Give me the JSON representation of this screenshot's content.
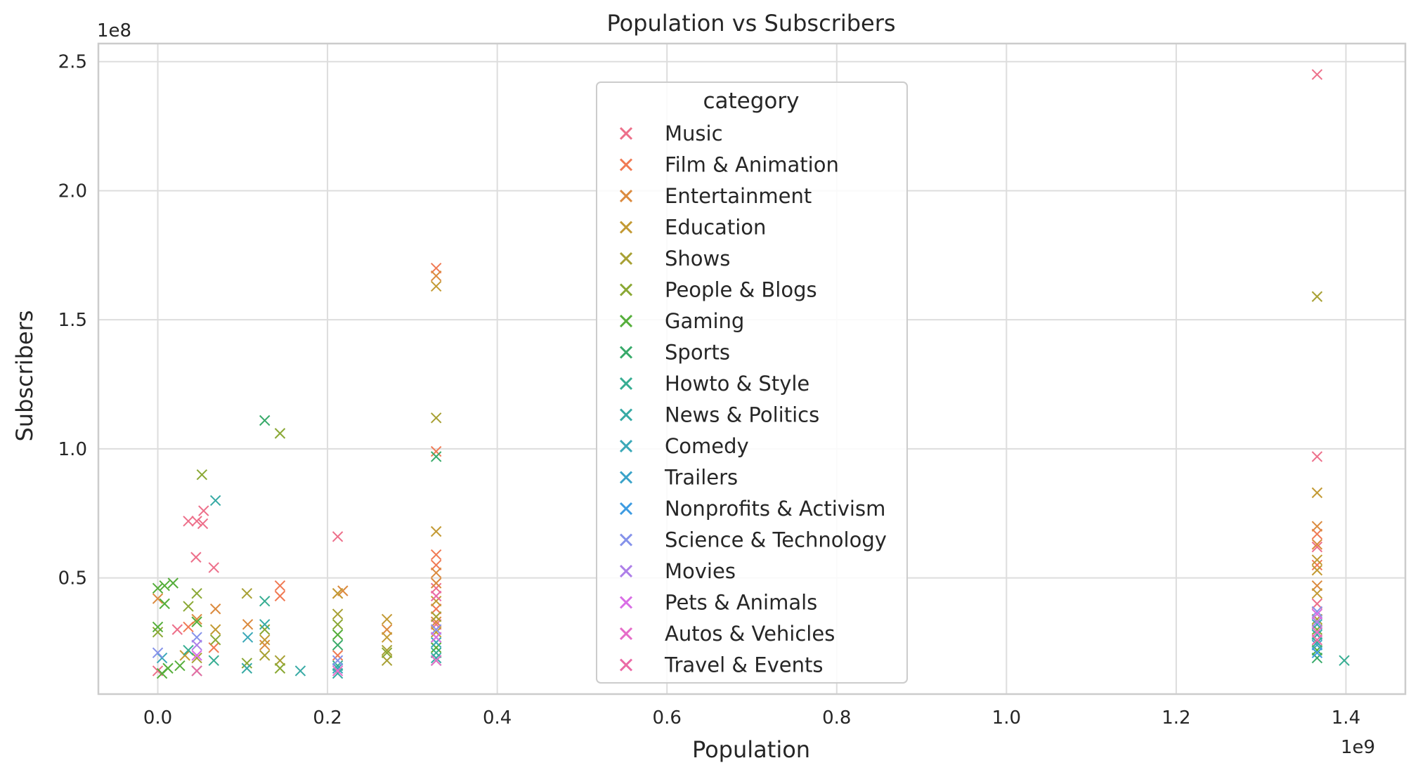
{
  "chart_data": {
    "type": "scatter",
    "title": "Population vs Subscribers",
    "xlabel": "Population",
    "ylabel": "Subscribers",
    "x_offset_label": "1e9",
    "y_offset_label": "1e8",
    "x_scale": 1000000000,
    "y_scale": 100000000,
    "xlim": [
      -70000000,
      1470000000
    ],
    "ylim": [
      5000000,
      257000000
    ],
    "x_ticks": [
      0,
      200000000,
      400000000,
      600000000,
      800000000,
      1000000000,
      1200000000,
      1400000000
    ],
    "x_tick_labels": [
      "0.0",
      "0.2",
      "0.4",
      "0.6",
      "0.8",
      "1.0",
      "1.2",
      "1.4"
    ],
    "y_ticks": [
      50000000,
      100000000,
      150000000,
      200000000,
      250000000
    ],
    "y_tick_labels": [
      "0.5",
      "1.0",
      "1.5",
      "2.0",
      "2.5"
    ],
    "grid": true,
    "marker": "x",
    "legend_title": "category",
    "legend_position": "upper-center",
    "series": [
      {
        "name": "Music",
        "color": "#ed6f8a",
        "points": [
          [
            1366000000,
            245000000
          ],
          [
            1366000000,
            97000000
          ],
          [
            212000000,
            66000000
          ],
          [
            36000000,
            72000000
          ],
          [
            46000000,
            72000000
          ],
          [
            54000000,
            76000000
          ],
          [
            45000000,
            58000000
          ],
          [
            66000000,
            54000000
          ],
          [
            328000000,
            46000000
          ],
          [
            1366000000,
            62000000
          ],
          [
            53000000,
            71000000
          ],
          [
            23000000,
            30000000
          ],
          [
            328000000,
            32000000
          ],
          [
            1366000000,
            40000000
          ],
          [
            0,
            14000000
          ]
        ]
      },
      {
        "name": "Film & Animation",
        "color": "#f07a54",
        "points": [
          [
            328000000,
            170000000
          ],
          [
            328000000,
            99000000
          ],
          [
            144000000,
            47000000
          ],
          [
            144000000,
            43000000
          ],
          [
            328000000,
            59000000
          ],
          [
            328000000,
            55000000
          ],
          [
            1366000000,
            67000000
          ],
          [
            1366000000,
            55000000
          ],
          [
            36000000,
            31000000
          ],
          [
            66000000,
            23000000
          ],
          [
            212000000,
            20000000
          ],
          [
            328000000,
            38000000
          ]
        ]
      },
      {
        "name": "Entertainment",
        "color": "#db8a3e",
        "points": [
          [
            328000000,
            167000000
          ],
          [
            1366000000,
            70000000
          ],
          [
            1366000000,
            63000000
          ],
          [
            328000000,
            52000000
          ],
          [
            328000000,
            48000000
          ],
          [
            0,
            42000000
          ],
          [
            68000000,
            38000000
          ],
          [
            212000000,
            44000000
          ],
          [
            218000000,
            45000000
          ],
          [
            1366000000,
            47000000
          ],
          [
            1366000000,
            36000000
          ],
          [
            106000000,
            32000000
          ],
          [
            46000000,
            34000000
          ],
          [
            328000000,
            33000000
          ],
          [
            126000000,
            24000000
          ],
          [
            270000000,
            30000000
          ]
        ]
      },
      {
        "name": "Education",
        "color": "#c39a34",
        "points": [
          [
            328000000,
            163000000
          ],
          [
            1366000000,
            83000000
          ],
          [
            328000000,
            68000000
          ],
          [
            1366000000,
            57000000
          ],
          [
            1366000000,
            53000000
          ],
          [
            270000000,
            34000000
          ],
          [
            270000000,
            27000000
          ],
          [
            212000000,
            44000000
          ],
          [
            328000000,
            41000000
          ],
          [
            1366000000,
            44000000
          ],
          [
            126000000,
            26000000
          ],
          [
            68000000,
            30000000
          ],
          [
            32000000,
            20000000
          ],
          [
            328000000,
            29000000
          ]
        ]
      },
      {
        "name": "Shows",
        "color": "#a7a033",
        "points": [
          [
            1366000000,
            159000000
          ],
          [
            328000000,
            112000000
          ],
          [
            212000000,
            36000000
          ],
          [
            270000000,
            22000000
          ],
          [
            328000000,
            35000000
          ],
          [
            1366000000,
            34000000
          ],
          [
            105000000,
            44000000
          ],
          [
            126000000,
            20000000
          ],
          [
            144000000,
            18000000
          ],
          [
            46000000,
            19000000
          ],
          [
            270000000,
            18000000
          ]
        ]
      },
      {
        "name": "People & Blogs",
        "color": "#8aa834",
        "points": [
          [
            52000000,
            90000000
          ],
          [
            144000000,
            106000000
          ],
          [
            46000000,
            44000000
          ],
          [
            36000000,
            39000000
          ],
          [
            212000000,
            32000000
          ],
          [
            270000000,
            21000000
          ],
          [
            1366000000,
            30000000
          ],
          [
            328000000,
            27000000
          ],
          [
            126000000,
            30000000
          ],
          [
            68000000,
            26000000
          ],
          [
            0,
            29000000
          ],
          [
            105000000,
            17000000
          ],
          [
            144000000,
            15000000
          ]
        ]
      },
      {
        "name": "Gaming",
        "color": "#55ae3a",
        "points": [
          [
            0,
            46000000
          ],
          [
            8000000,
            47000000
          ],
          [
            18000000,
            48000000
          ],
          [
            0,
            31000000
          ],
          [
            8000000,
            40000000
          ],
          [
            46000000,
            33000000
          ],
          [
            212000000,
            28000000
          ],
          [
            328000000,
            23000000
          ],
          [
            1366000000,
            22000000
          ],
          [
            12000000,
            15000000
          ],
          [
            5000000,
            13000000
          ],
          [
            26000000,
            16000000
          ]
        ]
      },
      {
        "name": "Sports",
        "color": "#38aa6a",
        "points": [
          [
            126000000,
            111000000
          ],
          [
            328000000,
            97000000
          ],
          [
            212000000,
            24000000
          ],
          [
            1366000000,
            19000000
          ],
          [
            328000000,
            18000000
          ],
          [
            46000000,
            14000000
          ]
        ]
      },
      {
        "name": "Howto & Style",
        "color": "#36ad92",
        "points": [
          [
            126000000,
            41000000
          ],
          [
            1398000000,
            18000000
          ],
          [
            1366000000,
            25000000
          ],
          [
            328000000,
            21000000
          ],
          [
            212000000,
            16000000
          ],
          [
            66000000,
            18000000
          ],
          [
            36000000,
            22000000
          ]
        ]
      },
      {
        "name": "News & Politics",
        "color": "#37aaa5",
        "points": [
          [
            68000000,
            80000000
          ],
          [
            168000000,
            14000000
          ],
          [
            1366000000,
            28000000
          ],
          [
            328000000,
            19000000
          ],
          [
            212000000,
            13000000
          ],
          [
            105000000,
            15000000
          ],
          [
            126000000,
            32000000
          ]
        ]
      },
      {
        "name": "Comedy",
        "color": "#3aa8b8",
        "points": [
          [
            1366000000,
            32000000
          ],
          [
            328000000,
            25000000
          ],
          [
            106000000,
            27000000
          ],
          [
            212000000,
            15000000
          ],
          [
            5000000,
            19000000
          ]
        ]
      },
      {
        "name": "Trailers",
        "color": "#3ba3c9",
        "points": [
          [
            1366000000,
            24000000
          ]
        ]
      },
      {
        "name": "Nonprofits & Activism",
        "color": "#3d9be1",
        "points": [
          [
            1366000000,
            21000000
          ]
        ]
      },
      {
        "name": "Science & Technology",
        "color": "#8592ea",
        "points": [
          [
            1366000000,
            37000000
          ],
          [
            328000000,
            30000000
          ],
          [
            46000000,
            27000000
          ],
          [
            0,
            21000000
          ],
          [
            212000000,
            18000000
          ]
        ]
      },
      {
        "name": "Movies",
        "color": "#ad7ee8",
        "points": [
          [
            1366000000,
            33000000
          ],
          [
            46000000,
            24000000
          ]
        ]
      },
      {
        "name": "Pets & Animals",
        "color": "#d96ee6",
        "points": [
          [
            1366000000,
            36000000
          ],
          [
            328000000,
            27000000
          ],
          [
            46000000,
            20000000
          ]
        ]
      },
      {
        "name": "Autos & Vehicles",
        "color": "#e66cc8",
        "points": [
          [
            1366000000,
            29000000
          ],
          [
            328000000,
            18000000
          ],
          [
            212000000,
            14000000
          ]
        ]
      },
      {
        "name": "Travel & Events",
        "color": "#ea6aa6",
        "points": [
          [
            1366000000,
            26000000
          ],
          [
            328000000,
            43000000
          ],
          [
            46000000,
            14000000
          ]
        ]
      }
    ]
  }
}
